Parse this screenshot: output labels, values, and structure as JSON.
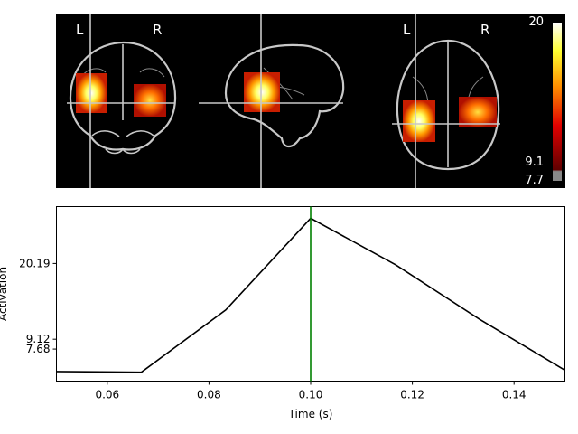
{
  "glass_brain": {
    "views": [
      {
        "name": "coronal",
        "left_label": "L",
        "right_label": "R"
      },
      {
        "name": "sagittal"
      },
      {
        "name": "axial",
        "left_label": "L",
        "right_label": "R"
      }
    ],
    "colorbar": {
      "max_label": "20",
      "threshold_label": "9.1",
      "min_label": "7.7",
      "colormap": "hot"
    }
  },
  "chart_data": {
    "type": "line",
    "xlabel": "Time (s)",
    "ylabel": "Activation",
    "xlim": [
      0.05,
      0.15
    ],
    "ylim": [
      3.0,
      28.5
    ],
    "xticks": [
      0.06,
      0.08,
      0.1,
      0.12,
      0.14
    ],
    "xtick_labels": [
      "0.06",
      "0.08",
      "0.10",
      "0.12",
      "0.14"
    ],
    "yticks": [
      7.68,
      9.12,
      20.19
    ],
    "ytick_labels": [
      "7.68",
      "9.12",
      "20.19"
    ],
    "series": [
      {
        "color": "#000000",
        "x": [
          0.05,
          0.0667,
          0.0833,
          0.1,
          0.1167,
          0.1333,
          0.15
        ],
        "y": [
          4.4,
          4.3,
          13.4,
          26.8,
          20.0,
          12.0,
          4.6
        ]
      }
    ],
    "vline": {
      "x": 0.1,
      "color": "#008000"
    },
    "grid": false
  }
}
